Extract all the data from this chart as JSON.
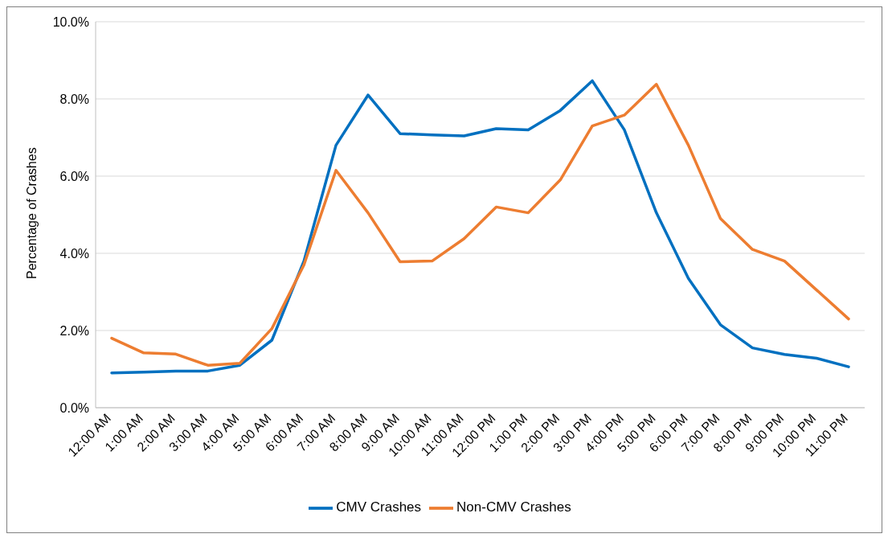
{
  "chart_data": {
    "type": "line",
    "ylabel": "Percentage of Crashes",
    "categories": [
      "12:00 AM",
      "1:00 AM",
      "2:00 AM",
      "3:00 AM",
      "4:00 AM",
      "5:00 AM",
      "6:00 AM",
      "7:00 AM",
      "8:00 AM",
      "9:00 AM",
      "10:00 AM",
      "11:00 AM",
      "12:00 PM",
      "1:00 PM",
      "2:00 PM",
      "3:00 PM",
      "4:00 PM",
      "5:00 PM",
      "6:00 PM",
      "7:00 PM",
      "8:00 PM",
      "9:00 PM",
      "10:00 PM",
      "11:00 PM"
    ],
    "series": [
      {
        "name": "CMV Crashes",
        "color": "#0070c0",
        "values": [
          0.9,
          0.92,
          0.95,
          0.95,
          1.1,
          1.75,
          3.8,
          6.8,
          8.1,
          7.1,
          7.07,
          7.04,
          7.23,
          7.2,
          7.7,
          8.47,
          7.2,
          5.05,
          3.35,
          2.15,
          1.55,
          1.38,
          1.28,
          1.06
        ]
      },
      {
        "name": "Non-CMV Crashes",
        "color": "#ed7d31",
        "values": [
          1.8,
          1.42,
          1.39,
          1.1,
          1.15,
          2.05,
          3.7,
          6.15,
          5.05,
          3.78,
          3.8,
          4.38,
          5.2,
          5.05,
          5.9,
          7.3,
          7.58,
          8.38,
          6.8,
          4.9,
          4.1,
          3.8,
          3.05,
          2.3
        ]
      }
    ],
    "ylim": [
      0,
      10
    ],
    "yticks": [
      {
        "value": 0,
        "label": "0.0%"
      },
      {
        "value": 2,
        "label": "2.0%"
      },
      {
        "value": 4,
        "label": "4.0%"
      },
      {
        "value": 6,
        "label": "6.0%"
      },
      {
        "value": 8,
        "label": "8.0%"
      },
      {
        "value": 10,
        "label": "10.0%"
      }
    ],
    "grid": "y",
    "legend": "bottom",
    "marker": "none",
    "line_style": "solid"
  }
}
